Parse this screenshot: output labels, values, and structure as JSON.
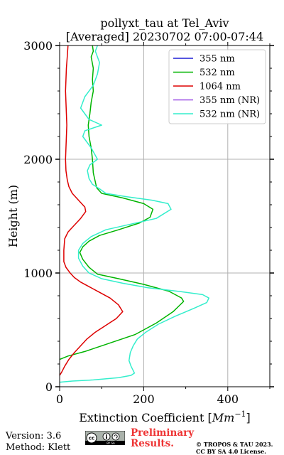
{
  "chart_data": {
    "type": "line",
    "title_line1": "pollyxt_tau at Tel_Aviv",
    "title_line2": "[Averaged] 20230702 07:00-07:44",
    "xlabel_prefix": "Extinction Coefficient [",
    "xlabel_unit": "Mm",
    "xlabel_exp": "−1",
    "xlabel_suffix": "]",
    "ylabel": "Height (m)",
    "xlim": [
      0,
      500
    ],
    "ylim": [
      0,
      3000
    ],
    "xticks": [
      0,
      200,
      400
    ],
    "yticks": [
      0,
      1000,
      2000,
      3000
    ],
    "grid": true,
    "legend_position": "top-right",
    "series": [
      {
        "name": "355 nm",
        "color": "#1f1fd6",
        "points": []
      },
      {
        "name": "532 nm",
        "color": "#00b400",
        "points": [
          [
            0,
            240
          ],
          [
            20,
            270
          ],
          [
            60,
            310
          ],
          [
            100,
            360
          ],
          [
            140,
            410
          ],
          [
            180,
            460
          ],
          [
            230,
            560
          ],
          [
            270,
            660
          ],
          [
            295,
            750
          ],
          [
            290,
            780
          ],
          [
            260,
            840
          ],
          [
            200,
            900
          ],
          [
            140,
            950
          ],
          [
            90,
            990
          ],
          [
            70,
            1050
          ],
          [
            55,
            1120
          ],
          [
            48,
            1180
          ],
          [
            55,
            1230
          ],
          [
            70,
            1280
          ],
          [
            95,
            1330
          ],
          [
            140,
            1380
          ],
          [
            190,
            1440
          ],
          [
            215,
            1490
          ],
          [
            222,
            1560
          ],
          [
            200,
            1610
          ],
          [
            150,
            1660
          ],
          [
            100,
            1700
          ],
          [
            88,
            1750
          ],
          [
            85,
            1800
          ],
          [
            80,
            1880
          ],
          [
            78,
            2000
          ],
          [
            75,
            2100
          ],
          [
            70,
            2200
          ],
          [
            68,
            2300
          ],
          [
            72,
            2400
          ],
          [
            75,
            2500
          ],
          [
            80,
            2600
          ],
          [
            78,
            2700
          ],
          [
            80,
            2800
          ],
          [
            75,
            2900
          ],
          [
            80,
            2950
          ],
          [
            78,
            3000
          ]
        ]
      },
      {
        "name": "1064 nm",
        "color": "#dd0000",
        "points": [
          [
            0,
            100
          ],
          [
            5,
            130
          ],
          [
            12,
            180
          ],
          [
            22,
            240
          ],
          [
            35,
            300
          ],
          [
            50,
            360
          ],
          [
            65,
            420
          ],
          [
            85,
            480
          ],
          [
            110,
            540
          ],
          [
            135,
            600
          ],
          [
            150,
            660
          ],
          [
            140,
            720
          ],
          [
            120,
            780
          ],
          [
            95,
            830
          ],
          [
            70,
            880
          ],
          [
            50,
            920
          ],
          [
            35,
            960
          ],
          [
            25,
            1000
          ],
          [
            15,
            1050
          ],
          [
            10,
            1100
          ],
          [
            10,
            1200
          ],
          [
            12,
            1300
          ],
          [
            20,
            1360
          ],
          [
            35,
            1420
          ],
          [
            50,
            1480
          ],
          [
            62,
            1540
          ],
          [
            60,
            1580
          ],
          [
            45,
            1640
          ],
          [
            30,
            1700
          ],
          [
            22,
            1760
          ],
          [
            18,
            1820
          ],
          [
            15,
            1900
          ],
          [
            14,
            2000
          ],
          [
            15,
            2100
          ],
          [
            16,
            2200
          ],
          [
            17,
            2300
          ],
          [
            16,
            2400
          ],
          [
            15,
            2500
          ],
          [
            14,
            2600
          ],
          [
            15,
            2700
          ],
          [
            16,
            2800
          ],
          [
            18,
            2900
          ],
          [
            20,
            3000
          ]
        ]
      },
      {
        "name": "355 nm (NR)",
        "color": "#9b4ee6",
        "points": []
      },
      {
        "name": "532 nm (NR)",
        "color": "#33eecc",
        "points": [
          [
            0,
            40
          ],
          [
            30,
            50
          ],
          [
            80,
            60
          ],
          [
            140,
            80
          ],
          [
            170,
            100
          ],
          [
            178,
            120
          ],
          [
            170,
            180
          ],
          [
            165,
            230
          ],
          [
            168,
            300
          ],
          [
            175,
            360
          ],
          [
            185,
            420
          ],
          [
            205,
            480
          ],
          [
            235,
            550
          ],
          [
            275,
            620
          ],
          [
            320,
            690
          ],
          [
            350,
            740
          ],
          [
            355,
            780
          ],
          [
            340,
            810
          ],
          [
            280,
            840
          ],
          [
            210,
            870
          ],
          [
            150,
            910
          ],
          [
            100,
            950
          ],
          [
            70,
            1000
          ],
          [
            55,
            1060
          ],
          [
            45,
            1130
          ],
          [
            45,
            1200
          ],
          [
            55,
            1260
          ],
          [
            75,
            1320
          ],
          [
            110,
            1380
          ],
          [
            170,
            1430
          ],
          [
            230,
            1480
          ],
          [
            265,
            1560
          ],
          [
            258,
            1610
          ],
          [
            220,
            1640
          ],
          [
            160,
            1670
          ],
          [
            110,
            1700
          ],
          [
            95,
            1740
          ],
          [
            78,
            1780
          ],
          [
            70,
            1830
          ],
          [
            66,
            1900
          ],
          [
            72,
            1950
          ],
          [
            90,
            2000
          ],
          [
            75,
            2100
          ],
          [
            55,
            2200
          ],
          [
            60,
            2250
          ],
          [
            100,
            2300
          ],
          [
            70,
            2350
          ],
          [
            50,
            2450
          ],
          [
            60,
            2550
          ],
          [
            80,
            2650
          ],
          [
            90,
            2750
          ],
          [
            95,
            2850
          ],
          [
            85,
            2950
          ],
          [
            90,
            3000
          ]
        ]
      }
    ]
  },
  "footer": {
    "version": "Version: 3.6",
    "method": "Method: Klett",
    "preliminary_line1": "Preliminary",
    "preliminary_line2": "Results.",
    "license_line1": "© TROPOS & TAU 2023.",
    "license_line2": "CC BY SA 4.0 License.",
    "badge_text": "cc",
    "badge_sub": "BY   SA"
  }
}
